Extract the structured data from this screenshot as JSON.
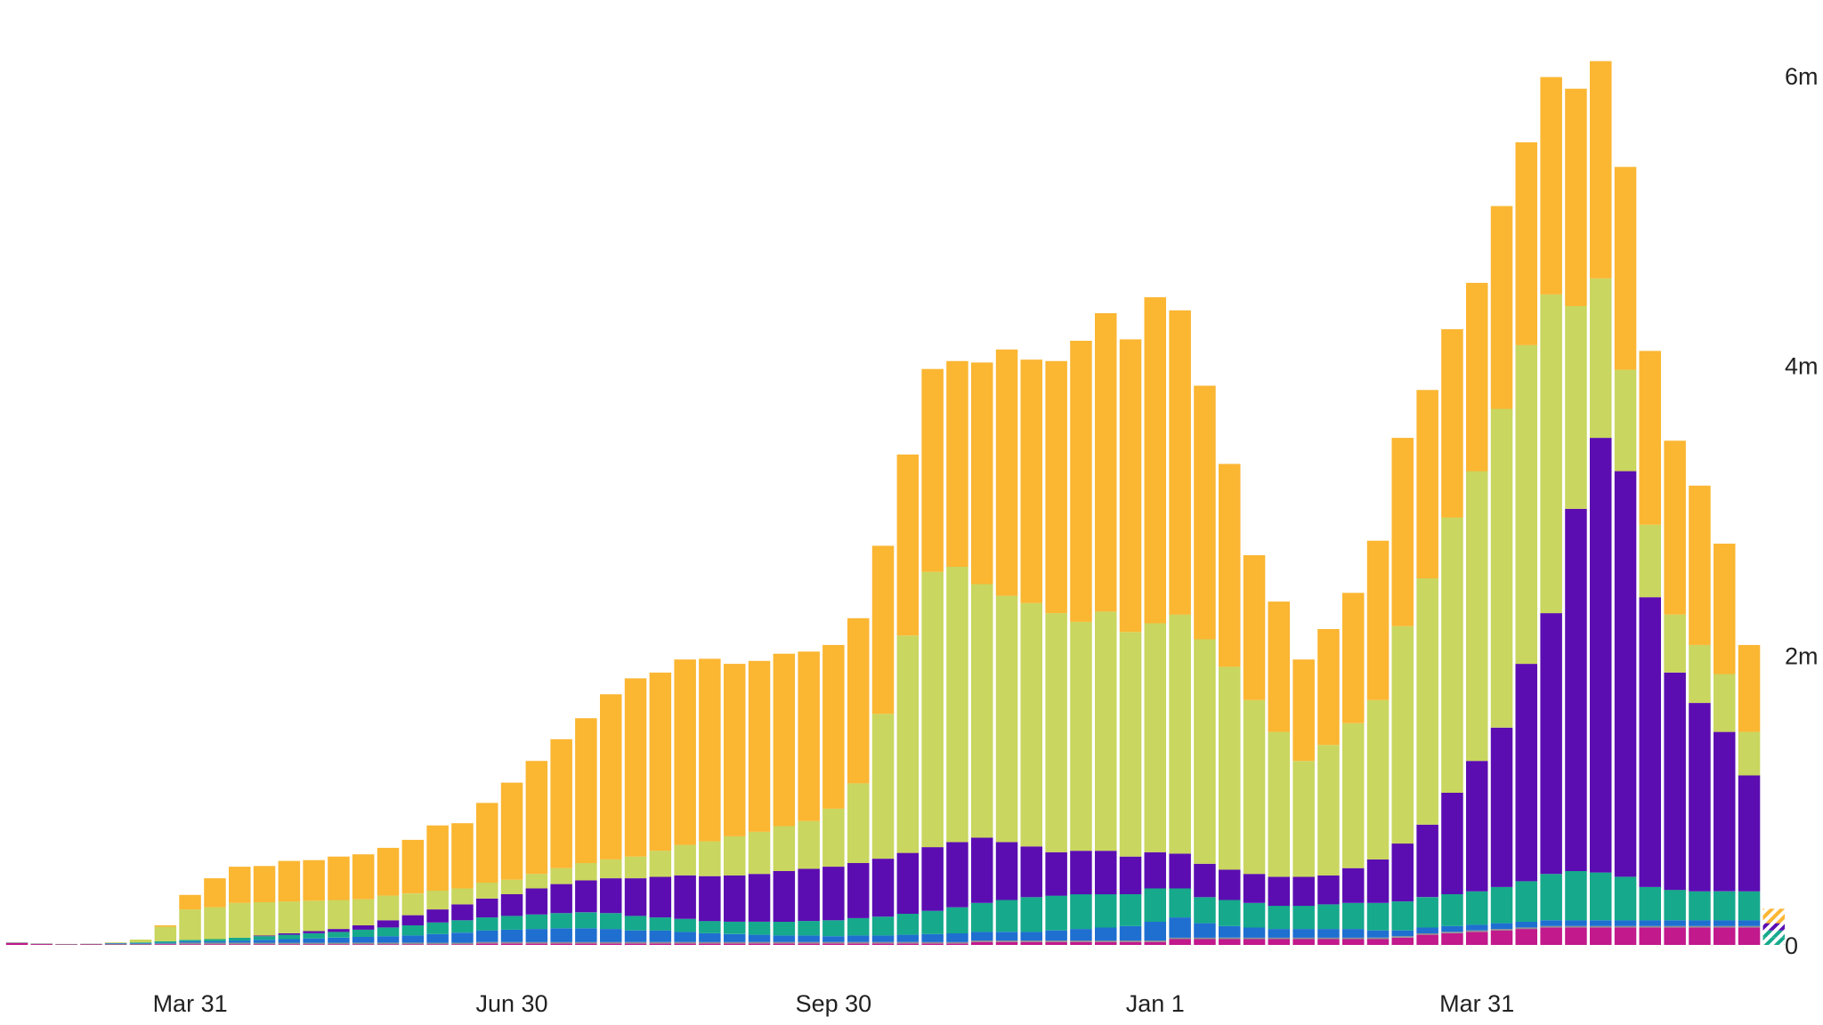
{
  "chart_data": {
    "type": "bar",
    "stacked": true,
    "title": "",
    "xlabel": "",
    "ylabel": "",
    "ylim": [
      0,
      6000000
    ],
    "y_ticks": [
      {
        "value": 0,
        "label": "0"
      },
      {
        "value": 2000000,
        "label": "2m"
      },
      {
        "value": 4000000,
        "label": "4m"
      },
      {
        "value": 6000000,
        "label": "6m"
      }
    ],
    "x_ticks": [
      {
        "index": 7,
        "label": "Mar 31"
      },
      {
        "index": 20,
        "label": "Jun 30"
      },
      {
        "index": 33,
        "label": "Sep 30"
      },
      {
        "index": 46,
        "label": "Jan 1"
      },
      {
        "index": 59,
        "label": "Mar 31"
      }
    ],
    "legend": "none",
    "grid": false,
    "series": [
      {
        "name": "series-magenta",
        "color": "#C2198C",
        "values": [
          15000,
          8000,
          5000,
          6000,
          5000,
          5000,
          5000,
          5000,
          5000,
          5000,
          5000,
          5000,
          5000,
          5000,
          5000,
          5000,
          5000,
          5000,
          5000,
          10000,
          10000,
          10000,
          10000,
          10000,
          10000,
          10000,
          10000,
          10000,
          10000,
          10000,
          10000,
          10000,
          10000,
          10000,
          10000,
          10000,
          10000,
          10000,
          10000,
          20000,
          20000,
          20000,
          20000,
          20000,
          20000,
          20000,
          20000,
          40000,
          40000,
          40000,
          40000,
          40000,
          40000,
          40000,
          40000,
          40000,
          50000,
          70000,
          80000,
          90000,
          100000,
          110000,
          120000,
          120000,
          120000,
          120000,
          120000,
          120000,
          120000,
          120000,
          120000
        ]
      },
      {
        "name": "series-gray",
        "color": "#8E8E8E",
        "values": [
          2000,
          2000,
          2000,
          2000,
          2000,
          2000,
          5000,
          10000,
          10000,
          10000,
          10000,
          10000,
          10000,
          10000,
          10000,
          10000,
          10000,
          10000,
          10000,
          10000,
          10000,
          10000,
          10000,
          10000,
          10000,
          10000,
          10000,
          10000,
          10000,
          10000,
          10000,
          10000,
          10000,
          10000,
          10000,
          10000,
          10000,
          10000,
          10000,
          10000,
          10000,
          10000,
          10000,
          10000,
          10000,
          10000,
          10000,
          10000,
          10000,
          10000,
          10000,
          10000,
          10000,
          10000,
          10000,
          10000,
          10000,
          10000,
          10000,
          10000,
          10000,
          10000,
          10000,
          10000,
          10000,
          10000,
          10000,
          10000,
          10000,
          10000,
          10000
        ]
      },
      {
        "name": "series-blue",
        "color": "#1F6FD1",
        "values": [
          0,
          0,
          0,
          0,
          5000,
          5000,
          5000,
          10000,
          10000,
          15000,
          20000,
          25000,
          30000,
          35000,
          40000,
          45000,
          50000,
          60000,
          70000,
          80000,
          85000,
          90000,
          95000,
          95000,
          90000,
          80000,
          80000,
          70000,
          60000,
          55000,
          50000,
          45000,
          45000,
          40000,
          45000,
          45000,
          50000,
          55000,
          60000,
          60000,
          60000,
          60000,
          70000,
          80000,
          90000,
          100000,
          130000,
          140000,
          100000,
          80000,
          70000,
          60000,
          60000,
          60000,
          60000,
          50000,
          40000,
          40000,
          40000,
          40000,
          40000,
          40000,
          40000,
          40000,
          40000,
          40000,
          40000,
          40000,
          40000,
          40000,
          40000
        ]
      },
      {
        "name": "series-teal",
        "color": "#16A98C",
        "values": [
          0,
          0,
          0,
          0,
          0,
          5000,
          10000,
          10000,
          15000,
          20000,
          25000,
          30000,
          35000,
          40000,
          50000,
          60000,
          70000,
          80000,
          85000,
          90000,
          95000,
          100000,
          105000,
          110000,
          110000,
          100000,
          90000,
          90000,
          85000,
          85000,
          90000,
          95000,
          100000,
          110000,
          120000,
          130000,
          145000,
          160000,
          180000,
          200000,
          220000,
          240000,
          240000,
          240000,
          230000,
          220000,
          230000,
          200000,
          180000,
          180000,
          170000,
          160000,
          160000,
          170000,
          180000,
          190000,
          200000,
          210000,
          220000,
          230000,
          250000,
          280000,
          320000,
          340000,
          330000,
          300000,
          230000,
          210000,
          200000,
          200000,
          200000
        ]
      },
      {
        "name": "series-purple",
        "color": "#5B0DB1",
        "values": [
          0,
          0,
          0,
          0,
          0,
          0,
          0,
          0,
          0,
          0,
          5000,
          10000,
          15000,
          20000,
          30000,
          50000,
          70000,
          90000,
          110000,
          130000,
          150000,
          180000,
          200000,
          220000,
          240000,
          260000,
          280000,
          300000,
          310000,
          320000,
          330000,
          350000,
          360000,
          370000,
          380000,
          400000,
          420000,
          440000,
          450000,
          450000,
          400000,
          350000,
          300000,
          300000,
          300000,
          260000,
          250000,
          240000,
          230000,
          210000,
          200000,
          200000,
          200000,
          200000,
          240000,
          300000,
          400000,
          500000,
          700000,
          900000,
          1100000,
          1500000,
          1800000,
          2500000,
          3000000,
          2800000,
          2000000,
          1500000,
          1300000,
          1100000,
          800000
        ]
      },
      {
        "name": "series-lime",
        "color": "#C9D65F",
        "values": [
          0,
          0,
          0,
          0,
          5000,
          20000,
          100000,
          210000,
          220000,
          240000,
          230000,
          220000,
          210000,
          200000,
          180000,
          170000,
          150000,
          130000,
          110000,
          110000,
          100000,
          100000,
          110000,
          120000,
          130000,
          150000,
          180000,
          210000,
          240000,
          270000,
          290000,
          310000,
          330000,
          400000,
          550000,
          1000000,
          1500000,
          1900000,
          1900000,
          1750000,
          1700000,
          1680000,
          1650000,
          1580000,
          1650000,
          1550000,
          1580000,
          1650000,
          1550000,
          1400000,
          1200000,
          1000000,
          800000,
          900000,
          1000000,
          1100000,
          1500000,
          1700000,
          1900000,
          2000000,
          2200000,
          2200000,
          2200000,
          1400000,
          1100000,
          700000,
          500000,
          400000,
          400000,
          400000,
          300000
        ]
      },
      {
        "name": "series-orange",
        "color": "#FBB632",
        "values": [
          0,
          0,
          0,
          0,
          0,
          0,
          10000,
          100000,
          200000,
          250000,
          250000,
          280000,
          280000,
          300000,
          310000,
          330000,
          370000,
          450000,
          450000,
          550000,
          670000,
          780000,
          890000,
          1000000,
          1140000,
          1230000,
          1230000,
          1280000,
          1260000,
          1190000,
          1180000,
          1190000,
          1170000,
          1130000,
          1140000,
          1160000,
          1250000,
          1400000,
          1420000,
          1530000,
          1700000,
          1680000,
          1740000,
          1940000,
          2060000,
          2020000,
          2250000,
          2100000,
          1750000,
          1400000,
          1000000,
          900000,
          700000,
          800000,
          900000,
          1100000,
          1300000,
          1300000,
          1300000,
          1300000,
          1400000,
          1400000,
          1500000,
          1500000,
          1500000,
          1400000,
          1200000,
          1200000,
          1100000,
          900000,
          600000
        ]
      }
    ],
    "partial_last_bar": {
      "label": "hatched",
      "values": [
        50000,
        0,
        0,
        50000,
        50000,
        0,
        100000
      ]
    }
  }
}
